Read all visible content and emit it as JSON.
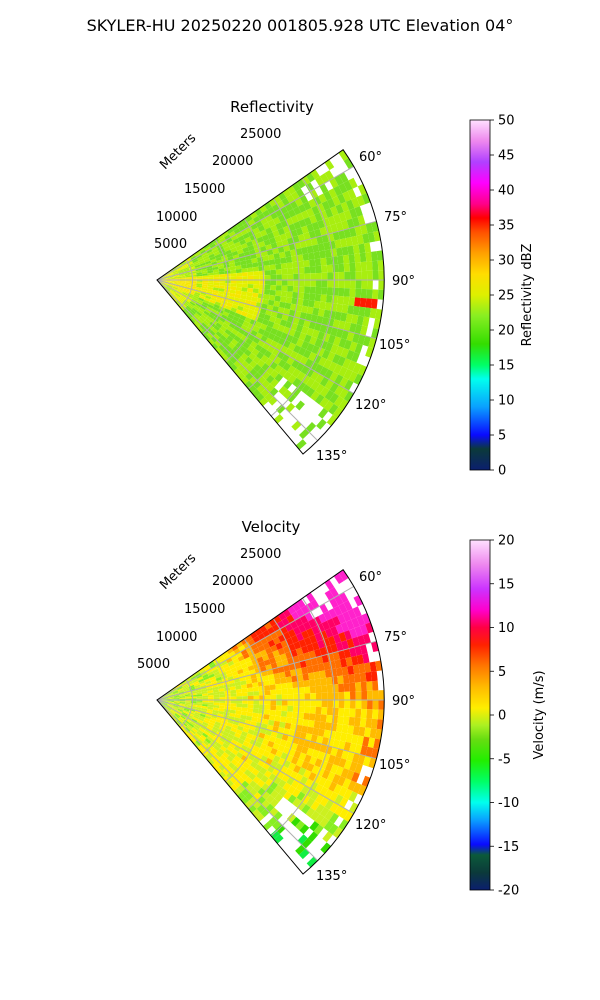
{
  "figure": {
    "suptitle": "SKYLER-HU  20250220  001805.928 UTC Elevation 04°"
  },
  "chart_data": [
    {
      "type": "heatmap",
      "subtype": "radar-ppi-sector",
      "title": "Reflectivity",
      "r_label": "Meters",
      "r_ticks": [
        5000,
        10000,
        15000,
        20000,
        25000
      ],
      "r_tick_labels": [
        "5000",
        "10000",
        "15000",
        "20000",
        "25000"
      ],
      "r_max": 32000,
      "theta_range_deg": [
        55,
        140
      ],
      "theta_ticks": [
        60,
        75,
        90,
        105,
        120,
        135
      ],
      "theta_tick_labels": [
        "60°",
        "75°",
        "90°",
        "105°",
        "120°",
        "135°"
      ],
      "colorbar": {
        "label": "Reflectivity dBZ",
        "range": [
          0,
          50
        ],
        "ticks": [
          0,
          5,
          10,
          15,
          20,
          25,
          30,
          35,
          40,
          45,
          50
        ],
        "tick_labels": [
          "0",
          "5",
          "10",
          "15",
          "20",
          "25",
          "30",
          "35",
          "40",
          "45",
          "50"
        ]
      },
      "field_summary": "Mostly 18–25 dBZ across the sector, near-range 25–28 dBZ along 90–110°, isolated ~38 dBZ speck near 97° at ~30 km; data gaps at far range toward 60° and 130–140°.",
      "grid": true
    },
    {
      "type": "heatmap",
      "subtype": "radar-ppi-sector",
      "title": "Velocity",
      "r_label": "Meters",
      "r_ticks": [
        5000,
        10000,
        15000,
        20000,
        25000
      ],
      "r_tick_labels": [
        "5000",
        "10000",
        "15000",
        "20000",
        "25000"
      ],
      "r_max": 32000,
      "theta_range_deg": [
        55,
        140
      ],
      "theta_ticks": [
        60,
        75,
        90,
        105,
        120,
        135
      ],
      "theta_tick_labels": [
        "60°",
        "75°",
        "90°",
        "105°",
        "120°",
        "135°"
      ],
      "colorbar": {
        "label": "Velocity (m/s)",
        "range": [
          -20,
          20
        ],
        "ticks": [
          -20,
          -15,
          -10,
          -5,
          0,
          5,
          10,
          15,
          20
        ],
        "tick_labels": [
          "-20",
          "-15",
          "-10",
          "-5",
          "0",
          "5",
          "10",
          "15",
          "20"
        ]
      },
      "field_summary": "Near range ~-3 m/s (green-yellow) becoming 0–3 m/s with range; strong outbound 8–15 m/s at far range toward 60–80°; inbound -5 to -8 m/s toward 120–140° at far range.",
      "grid": true
    }
  ]
}
